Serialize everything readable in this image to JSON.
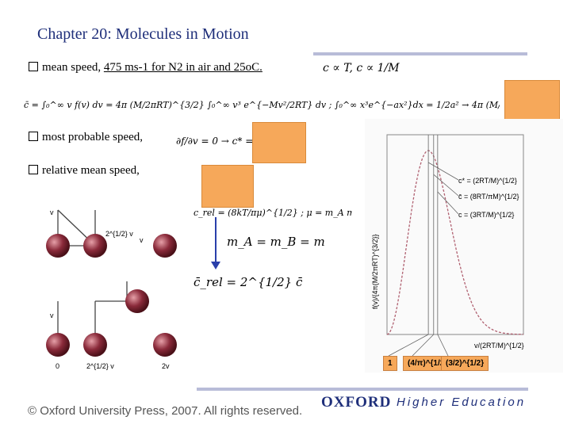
{
  "slide": {
    "title": "Chapter 20: Molecules in Motion",
    "bullets": [
      {
        "prefix": "mean speed, ",
        "underlined": "475 ms-1 for N2 in air and 25oC.",
        "relation": "c ∝ T, c ∝ 1/M"
      },
      {
        "text": "most probable speed,"
      },
      {
        "text": "relative mean speed,"
      }
    ]
  },
  "equations": {
    "mean_speed": "c̄ = ∫₀^∞ v f(v) dv = 4π (M/2πRT)^{3/2} ∫₀^∞ v³ e^{−Mv²/2RT} dv ; ∫₀^∞ x³e^{−ax²}dx = 1/2a² → 4π (M/2πRT)^{3/2} × ½ (2RT/M)² = (8RT/πM)^{1/2}",
    "most_probable": "∂f/∂v = 0 → c* = (2RT/M)^{1/2}",
    "relative": "c_rel = (8kT/πμ)^{1/2} ; μ = m_A m_B/(m_A + m_B)",
    "equal_mass": "m_A = m_B = m",
    "result": "c̄_rel = 2^{1/2} c̄"
  },
  "diagram": {
    "labels": [
      "v",
      "2^{1/2} v",
      "v",
      "v",
      "0",
      "2^{1/2} v",
      "2v"
    ]
  },
  "chart_data": {
    "type": "line",
    "xlabel": "v/(2RT/M)^{1/2}",
    "ylabel": "f(v)/{4π(M/2πRT)^{3/2}}",
    "legend": [
      "c* = (2RT/M)^{1/2}",
      "c̄ = (8RT/πM)^{1/2}",
      "c = (3RT/M)^{1/2}"
    ],
    "markers": [
      "1",
      "(4/π)^{1/2}",
      "(3/2)^{1/2}"
    ],
    "marker_values": [
      1.0,
      1.128,
      1.225
    ]
  },
  "footer": {
    "copyright": "© Oxford University Press, 2007. All rights reserved.",
    "brand": "OXFORD",
    "division": "Higher Education"
  },
  "colors": {
    "title": "#1f2f7a",
    "highlight": "#f6a85a",
    "curve": "#b06070",
    "sphere": "#8a2a3a"
  }
}
